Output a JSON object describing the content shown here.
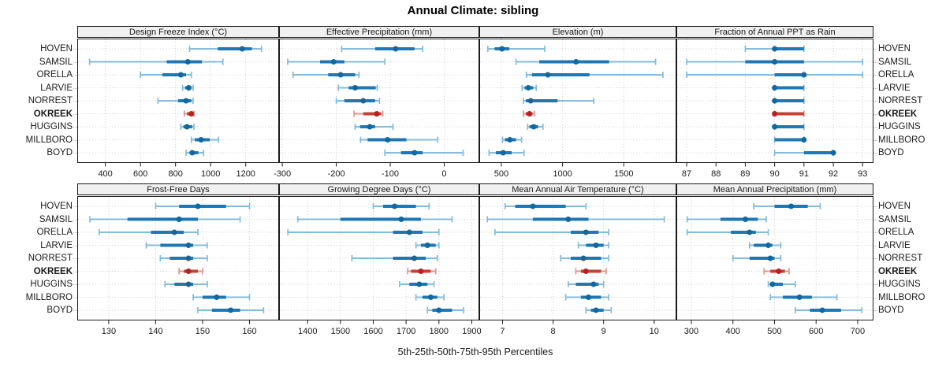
{
  "title": "Annual Climate: sibling",
  "axis_caption": "5th-25th-50th-75th-95th Percentiles",
  "stations": [
    "HOVEN",
    "SAMSIL",
    "ORELLA",
    "LARVIE",
    "NORREST",
    "OKREEK",
    "HUGGINS",
    "MILLBORO",
    "BOYD"
  ],
  "highlight_station": "OKREEK",
  "colors": {
    "blue_dot": "#11679f",
    "blue_bar": "#1f77b4",
    "blue_whisker": "#85bbdb",
    "red_dot": "#b42222",
    "red_bar": "#c44133",
    "red_whisker": "#e0958d",
    "grid": "#cccccc",
    "panel_border": "#1a1a1a",
    "header_bg": "#f0f0f0",
    "text": "#1a1a1a"
  },
  "chart_data": {
    "type": "dot-interval",
    "orientation": "horizontal",
    "percentiles": [
      5,
      25,
      50,
      75,
      95
    ],
    "grid": "dotted at x ticks and at each station row",
    "legend_position": "none",
    "panels": [
      {
        "title": "Design Freeze Index (°C)",
        "row": 0,
        "col": 0,
        "xlim": [
          240,
          1390
        ],
        "ticks": [
          400,
          600,
          800,
          1000,
          1200
        ],
        "values": [
          [
            880,
            1040,
            1180,
            1235,
            1290
          ],
          [
            310,
            750,
            870,
            950,
            1070
          ],
          [
            600,
            725,
            830,
            860,
            890
          ],
          [
            840,
            855,
            875,
            890,
            900
          ],
          [
            700,
            815,
            860,
            890,
            900
          ],
          [
            850,
            865,
            890,
            900,
            905
          ],
          [
            830,
            845,
            865,
            895,
            905
          ],
          [
            890,
            910,
            945,
            995,
            1045
          ],
          [
            860,
            880,
            895,
            930,
            960
          ]
        ]
      },
      {
        "title": "Effective Precipitation (mm)",
        "row": 0,
        "col": 1,
        "xlim": [
          -306,
          65
        ],
        "ticks": [
          -300,
          -200,
          -100,
          0
        ],
        "values": [
          [
            -190,
            -128,
            -90,
            -55,
            -40
          ],
          [
            -290,
            -230,
            -205,
            -185,
            -110
          ],
          [
            -280,
            -215,
            -192,
            -165,
            -158
          ],
          [
            -196,
            -177,
            -165,
            -127,
            -124
          ],
          [
            -200,
            -185,
            -150,
            -128,
            -120
          ],
          [
            -167,
            -150,
            -125,
            -117,
            -114
          ],
          [
            -165,
            -156,
            -138,
            -128,
            -95
          ],
          [
            -155,
            -142,
            -105,
            -70,
            -12
          ],
          [
            -110,
            -80,
            -55,
            -40,
            35
          ]
        ]
      },
      {
        "title": "Elevation (m)",
        "row": 0,
        "col": 2,
        "xlim": [
          320,
          1930
        ],
        "ticks": [
          500,
          1000,
          1500
        ],
        "values": [
          [
            390,
            445,
            505,
            565,
            855
          ],
          [
            620,
            810,
            1110,
            1380,
            1760
          ],
          [
            705,
            750,
            880,
            1220,
            1820
          ],
          [
            670,
            690,
            720,
            760,
            785
          ],
          [
            680,
            700,
            740,
            960,
            1255
          ],
          [
            680,
            700,
            730,
            755,
            770
          ],
          [
            715,
            730,
            765,
            800,
            840
          ],
          [
            510,
            530,
            570,
            620,
            665
          ],
          [
            400,
            455,
            515,
            585,
            685
          ]
        ]
      },
      {
        "title": "Fraction of Annual PPT as Rain",
        "row": 0,
        "col": 3,
        "xlim": [
          86.65,
          93.37
        ],
        "ticks": [
          87,
          88,
          89,
          90,
          91,
          92,
          93
        ],
        "values": [
          [
            89,
            90,
            90,
            91,
            91
          ],
          [
            87,
            89,
            90,
            91,
            93
          ],
          [
            87,
            90,
            91,
            91,
            93
          ],
          [
            90,
            90,
            90,
            91,
            91
          ],
          [
            90,
            90,
            90,
            91,
            91
          ],
          [
            90,
            90,
            90,
            91,
            91
          ],
          [
            90,
            90,
            90,
            91,
            91
          ],
          [
            90,
            90,
            91,
            91,
            91
          ],
          [
            90,
            91,
            92,
            92,
            92
          ]
        ]
      },
      {
        "title": "Frost-Free Days",
        "row": 1,
        "col": 0,
        "xlim": [
          123.3,
          166.3
        ],
        "ticks": [
          130,
          140,
          150,
          160
        ],
        "values": [
          [
            140,
            145,
            149,
            155,
            160
          ],
          [
            126,
            134,
            145,
            149,
            158
          ],
          [
            128,
            139,
            144,
            146,
            149
          ],
          [
            138,
            141,
            147,
            148,
            151
          ],
          [
            141,
            143,
            147,
            148,
            151
          ],
          [
            145,
            146,
            147,
            149,
            150
          ],
          [
            142,
            144,
            147,
            148,
            151
          ],
          [
            148,
            150,
            153,
            155,
            160
          ],
          [
            149,
            152,
            156,
            158,
            163
          ]
        ]
      },
      {
        "title": "Growing Degree Days (°C)",
        "row": 1,
        "col": 1,
        "xlim": [
          1313,
          1923
        ],
        "ticks": [
          1400,
          1500,
          1600,
          1700,
          1800,
          1900
        ],
        "values": [
          [
            1600,
            1630,
            1665,
            1730,
            1770
          ],
          [
            1370,
            1500,
            1685,
            1745,
            1840
          ],
          [
            1340,
            1660,
            1710,
            1750,
            1800
          ],
          [
            1730,
            1745,
            1765,
            1790,
            1800
          ],
          [
            1535,
            1660,
            1725,
            1760,
            1795
          ],
          [
            1705,
            1715,
            1745,
            1775,
            1790
          ],
          [
            1680,
            1710,
            1740,
            1765,
            1785
          ],
          [
            1730,
            1750,
            1775,
            1795,
            1815
          ],
          [
            1765,
            1780,
            1800,
            1840,
            1875
          ]
        ]
      },
      {
        "title": "Mean Annual Air Temperature (°C)",
        "row": 1,
        "col": 2,
        "xlim": [
          6.54,
          10.44
        ],
        "ticks": [
          7,
          8,
          9,
          10
        ],
        "values": [
          [
            7.05,
            7.25,
            7.6,
            8.25,
            8.65
          ],
          [
            6.7,
            7.6,
            8.3,
            8.7,
            10.2
          ],
          [
            6.85,
            8.35,
            8.65,
            8.9,
            9.1
          ],
          [
            8.5,
            8.65,
            8.85,
            9.0,
            9.1
          ],
          [
            8.15,
            8.35,
            8.6,
            8.95,
            9.1
          ],
          [
            8.45,
            8.55,
            8.65,
            8.95,
            9.05
          ],
          [
            8.3,
            8.45,
            8.8,
            8.9,
            9.0
          ],
          [
            8.25,
            8.55,
            8.7,
            8.95,
            9.1
          ],
          [
            8.65,
            8.75,
            8.85,
            9.0,
            9.15
          ]
        ]
      },
      {
        "title": "Mean Annual Precipitation (mm)",
        "row": 1,
        "col": 3,
        "xlim": [
          264,
          738
        ],
        "ticks": [
          300,
          400,
          500,
          600,
          700
        ],
        "values": [
          [
            450,
            500,
            540,
            580,
            610
          ],
          [
            290,
            370,
            430,
            460,
            480
          ],
          [
            290,
            395,
            440,
            455,
            485
          ],
          [
            440,
            450,
            485,
            495,
            515
          ],
          [
            400,
            440,
            490,
            500,
            515
          ],
          [
            475,
            490,
            510,
            525,
            535
          ],
          [
            485,
            490,
            495,
            520,
            550
          ],
          [
            490,
            520,
            560,
            590,
            650
          ],
          [
            550,
            585,
            615,
            660,
            710
          ]
        ]
      }
    ]
  }
}
